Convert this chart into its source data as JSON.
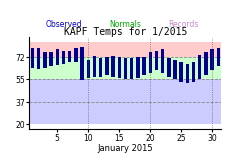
{
  "title": "KAPF Temps for 1/2015",
  "legend_labels": [
    "Observed",
    "Normals",
    "Records"
  ],
  "legend_text_colors": [
    "#0000cc",
    "#00aa00",
    "#cc88cc"
  ],
  "xlabel": "January 2015",
  "yticks": [
    20,
    37,
    55,
    72
  ],
  "xticks": [
    5,
    10,
    15,
    20,
    25,
    30
  ],
  "xlim": [
    0.5,
    31.5
  ],
  "ylim": [
    16,
    88
  ],
  "background_color": "#ffffff",
  "record_high": [
    84,
    84,
    84,
    84,
    84,
    84,
    84,
    84,
    84,
    84,
    84,
    84,
    84,
    84,
    84,
    83,
    83,
    83,
    83,
    84,
    84,
    84,
    84,
    84,
    84,
    84,
    84,
    84,
    84,
    84,
    84
  ],
  "record_low": [
    20,
    20,
    20,
    20,
    20,
    20,
    20,
    20,
    20,
    20,
    20,
    20,
    20,
    20,
    20,
    20,
    20,
    20,
    20,
    20,
    20,
    20,
    20,
    20,
    20,
    20,
    20,
    20,
    20,
    20,
    20
  ],
  "normal_high": [
    72,
    72,
    72,
    72,
    72,
    72,
    72,
    72,
    72,
    72,
    72,
    72,
    72,
    72,
    72,
    72,
    72,
    72,
    72,
    72,
    72,
    72,
    72,
    72,
    72,
    72,
    72,
    72,
    72,
    72,
    72
  ],
  "normal_low": [
    55,
    55,
    55,
    55,
    55,
    55,
    55,
    55,
    55,
    55,
    55,
    55,
    55,
    55,
    55,
    55,
    55,
    55,
    55,
    55,
    55,
    55,
    55,
    55,
    55,
    55,
    55,
    55,
    55,
    55,
    55
  ],
  "obs_high": [
    79,
    79,
    76,
    76,
    78,
    77,
    77,
    79,
    80,
    70,
    73,
    71,
    72,
    73,
    72,
    71,
    71,
    72,
    72,
    76,
    77,
    78,
    71,
    70,
    68,
    67,
    68,
    74,
    76,
    78,
    79
  ],
  "obs_low": [
    64,
    63,
    64,
    65,
    66,
    67,
    68,
    68,
    54,
    56,
    57,
    57,
    58,
    57,
    56,
    55,
    55,
    56,
    58,
    60,
    62,
    60,
    57,
    55,
    53,
    52,
    53,
    55,
    58,
    62,
    65
  ],
  "vgrid_days": [
    10,
    20,
    30
  ],
  "record_fill": "#ffcccc",
  "record_fill_below": "#ccccff",
  "normal_fill": "#ccffcc",
  "bar_color": "#00008b",
  "bar_width": 0.55,
  "title_fontsize": 7,
  "tick_fontsize": 5.5,
  "xlabel_fontsize": 6,
  "legend_fontsize": 5.5
}
